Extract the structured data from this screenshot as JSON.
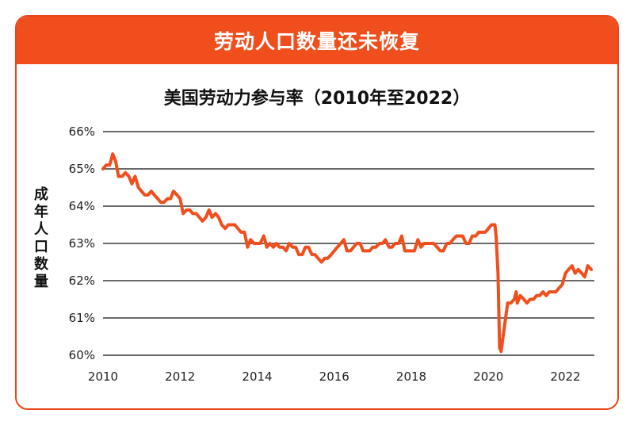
{
  "banner": {
    "title": "劳动人口数量还未恢复"
  },
  "colors": {
    "accent": "#f04e1c",
    "line": "#f04e1c",
    "grid": "#111111"
  },
  "chart_data": {
    "type": "line",
    "title": "美国劳动力参与率（2010年至2022）",
    "ylabel": "成年人口数量",
    "xlabel": "",
    "xlim": [
      2010,
      2022.75
    ],
    "ylim": [
      60,
      66
    ],
    "x_ticks": [
      "2010",
      "2012",
      "2014",
      "2016",
      "2018",
      "2020",
      "2022"
    ],
    "y_ticks": [
      "60%",
      "61%",
      "62%",
      "63%",
      "64%",
      "65%",
      "66%"
    ],
    "grid": true,
    "series": [
      {
        "points": [
          [
            2010.0,
            65.0
          ],
          [
            2010.08,
            65.1
          ],
          [
            2010.17,
            65.1
          ],
          [
            2010.2,
            65.2
          ],
          [
            2010.25,
            65.4
          ],
          [
            2010.33,
            65.2
          ],
          [
            2010.4,
            64.8
          ],
          [
            2010.5,
            64.8
          ],
          [
            2010.58,
            64.9
          ],
          [
            2010.67,
            64.8
          ],
          [
            2010.75,
            64.6
          ],
          [
            2010.83,
            64.8
          ],
          [
            2010.92,
            64.5
          ],
          [
            2011.0,
            64.4
          ],
          [
            2011.08,
            64.3
          ],
          [
            2011.17,
            64.3
          ],
          [
            2011.25,
            64.4
          ],
          [
            2011.33,
            64.3
          ],
          [
            2011.42,
            64.2
          ],
          [
            2011.5,
            64.1
          ],
          [
            2011.58,
            64.1
          ],
          [
            2011.67,
            64.2
          ],
          [
            2011.75,
            64.2
          ],
          [
            2011.83,
            64.4
          ],
          [
            2011.92,
            64.3
          ],
          [
            2012.0,
            64.2
          ],
          [
            2012.08,
            63.8
          ],
          [
            2012.17,
            63.9
          ],
          [
            2012.25,
            63.9
          ],
          [
            2012.33,
            63.8
          ],
          [
            2012.42,
            63.8
          ],
          [
            2012.5,
            63.7
          ],
          [
            2012.58,
            63.6
          ],
          [
            2012.67,
            63.7
          ],
          [
            2012.75,
            63.9
          ],
          [
            2012.83,
            63.7
          ],
          [
            2012.92,
            63.8
          ],
          [
            2013.0,
            63.7
          ],
          [
            2013.08,
            63.5
          ],
          [
            2013.17,
            63.4
          ],
          [
            2013.25,
            63.5
          ],
          [
            2013.33,
            63.5
          ],
          [
            2013.42,
            63.5
          ],
          [
            2013.5,
            63.4
          ],
          [
            2013.58,
            63.3
          ],
          [
            2013.67,
            63.3
          ],
          [
            2013.75,
            62.9
          ],
          [
            2013.83,
            63.1
          ],
          [
            2013.92,
            63.0
          ],
          [
            2014.0,
            63.0
          ],
          [
            2014.08,
            63.0
          ],
          [
            2014.17,
            63.2
          ],
          [
            2014.25,
            62.9
          ],
          [
            2014.33,
            63.0
          ],
          [
            2014.42,
            62.9
          ],
          [
            2014.5,
            63.0
          ],
          [
            2014.58,
            62.9
          ],
          [
            2014.67,
            62.9
          ],
          [
            2014.75,
            62.8
          ],
          [
            2014.83,
            63.0
          ],
          [
            2014.92,
            62.9
          ],
          [
            2015.0,
            62.9
          ],
          [
            2015.08,
            62.7
          ],
          [
            2015.17,
            62.7
          ],
          [
            2015.25,
            62.9
          ],
          [
            2015.33,
            62.9
          ],
          [
            2015.42,
            62.7
          ],
          [
            2015.5,
            62.7
          ],
          [
            2015.58,
            62.6
          ],
          [
            2015.67,
            62.5
          ],
          [
            2015.75,
            62.6
          ],
          [
            2015.83,
            62.6
          ],
          [
            2015.92,
            62.7
          ],
          [
            2016.0,
            62.8
          ],
          [
            2016.08,
            62.9
          ],
          [
            2016.17,
            63.0
          ],
          [
            2016.25,
            63.1
          ],
          [
            2016.33,
            62.8
          ],
          [
            2016.42,
            62.8
          ],
          [
            2016.5,
            62.9
          ],
          [
            2016.58,
            63.0
          ],
          [
            2016.67,
            63.0
          ],
          [
            2016.75,
            62.8
          ],
          [
            2016.83,
            62.8
          ],
          [
            2016.92,
            62.8
          ],
          [
            2017.0,
            62.9
          ],
          [
            2017.08,
            62.9
          ],
          [
            2017.17,
            63.0
          ],
          [
            2017.25,
            63.0
          ],
          [
            2017.33,
            63.1
          ],
          [
            2017.42,
            62.9
          ],
          [
            2017.5,
            62.9
          ],
          [
            2017.58,
            63.0
          ],
          [
            2017.67,
            63.0
          ],
          [
            2017.75,
            63.2
          ],
          [
            2017.83,
            62.8
          ],
          [
            2017.92,
            62.8
          ],
          [
            2018.0,
            62.8
          ],
          [
            2018.08,
            62.8
          ],
          [
            2018.17,
            63.1
          ],
          [
            2018.25,
            62.9
          ],
          [
            2018.33,
            63.0
          ],
          [
            2018.42,
            63.0
          ],
          [
            2018.5,
            63.0
          ],
          [
            2018.58,
            63.0
          ],
          [
            2018.67,
            62.9
          ],
          [
            2018.75,
            62.8
          ],
          [
            2018.83,
            62.8
          ],
          [
            2018.92,
            63.0
          ],
          [
            2019.0,
            63.0
          ],
          [
            2019.08,
            63.1
          ],
          [
            2019.17,
            63.2
          ],
          [
            2019.25,
            63.2
          ],
          [
            2019.33,
            63.2
          ],
          [
            2019.42,
            63.0
          ],
          [
            2019.5,
            63.0
          ],
          [
            2019.58,
            63.2
          ],
          [
            2019.67,
            63.2
          ],
          [
            2019.75,
            63.3
          ],
          [
            2019.83,
            63.3
          ],
          [
            2019.92,
            63.3
          ],
          [
            2020.0,
            63.4
          ],
          [
            2020.08,
            63.5
          ],
          [
            2020.17,
            63.5
          ],
          [
            2020.2,
            63.2
          ],
          [
            2020.25,
            62.2
          ],
          [
            2020.29,
            60.2
          ],
          [
            2020.33,
            60.1
          ],
          [
            2020.42,
            60.8
          ],
          [
            2020.5,
            61.4
          ],
          [
            2020.58,
            61.4
          ],
          [
            2020.67,
            61.5
          ],
          [
            2020.72,
            61.7
          ],
          [
            2020.75,
            61.4
          ],
          [
            2020.83,
            61.6
          ],
          [
            2020.92,
            61.5
          ],
          [
            2021.0,
            61.4
          ],
          [
            2021.08,
            61.5
          ],
          [
            2021.17,
            61.5
          ],
          [
            2021.25,
            61.6
          ],
          [
            2021.33,
            61.6
          ],
          [
            2021.42,
            61.7
          ],
          [
            2021.5,
            61.6
          ],
          [
            2021.58,
            61.7
          ],
          [
            2021.67,
            61.7
          ],
          [
            2021.75,
            61.7
          ],
          [
            2021.83,
            61.8
          ],
          [
            2021.92,
            61.9
          ],
          [
            2022.0,
            62.2
          ],
          [
            2022.08,
            62.3
          ],
          [
            2022.17,
            62.4
          ],
          [
            2022.25,
            62.2
          ],
          [
            2022.33,
            62.3
          ],
          [
            2022.42,
            62.2
          ],
          [
            2022.5,
            62.1
          ],
          [
            2022.58,
            62.4
          ],
          [
            2022.67,
            62.3
          ]
        ]
      }
    ]
  }
}
